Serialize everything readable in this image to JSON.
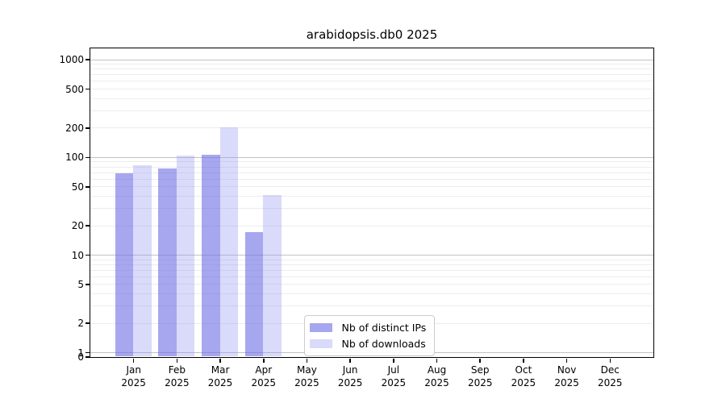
{
  "title": "arabidopsis.db0 2025",
  "chart_data": {
    "type": "bar",
    "title": "arabidopsis.db0 2025",
    "categories": [
      "Jan 2025",
      "Feb 2025",
      "Mar 2025",
      "Apr 2025",
      "May 2025",
      "Jun 2025",
      "Jul 2025",
      "Aug 2025",
      "Sep 2025",
      "Oct 2025",
      "Nov 2025",
      "Dec 2025"
    ],
    "series": [
      {
        "name": "Nb of distinct IPs",
        "fill": "rgba(108,108,228,0.60)",
        "values": [
          68,
          77,
          106,
          17,
          0,
          0,
          0,
          0,
          0,
          0,
          0,
          0
        ]
      },
      {
        "name": "Nb of downloads",
        "fill": "rgba(149,149,240,0.35)",
        "values": [
          83,
          104,
          200,
          41,
          0,
          0,
          0,
          0,
          0,
          0,
          0,
          0
        ]
      }
    ],
    "xlabel": "",
    "ylabel": "",
    "yscale": "log (with 0 baseline)",
    "yticks": [
      0,
      1,
      2,
      5,
      10,
      20,
      50,
      100,
      200,
      500,
      1000
    ],
    "ylim": [
      0,
      1400
    ],
    "grid": "horizontal, minor gridlines at 2-9 of each decade",
    "legend_position": "lower center inside plot"
  },
  "colors": {
    "background": "#ffffff",
    "text": "#000000",
    "spine": "#000000",
    "grid_major": "#c2c2c2",
    "grid_minor": "#ececec",
    "legend_border": "#cccccc",
    "bar_distinct_ips": "#a8a8ee",
    "bar_downloads": "#dadaf7"
  }
}
